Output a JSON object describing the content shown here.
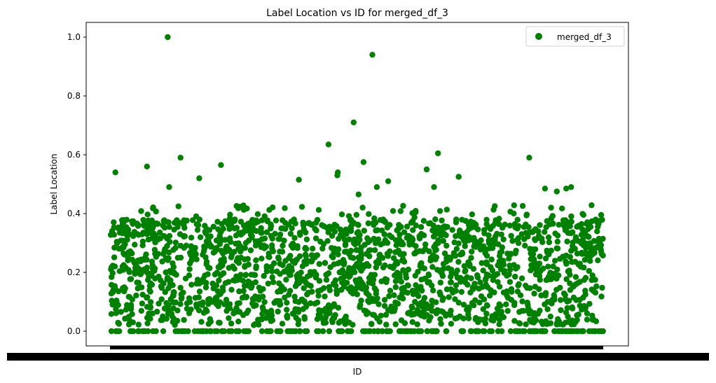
{
  "chart_data": {
    "type": "scatter",
    "title": "Label Location vs ID for merged_df_3",
    "xlabel": "ID",
    "ylabel": "Label Location",
    "ylim": [
      -0.05,
      1.05
    ],
    "yticks": [
      "0.0",
      "0.2",
      "0.4",
      "0.6",
      "0.8",
      "1.0"
    ],
    "x_tick_labels": "overlapping, illegible",
    "grid": false,
    "legend_position": "top-right",
    "series": [
      {
        "name": "merged_df_3",
        "color": "#008000",
        "marker": "circle",
        "point_count_estimate": 2100,
        "value_range": [
          0.0,
          0.41
        ],
        "notable_points": [
          {
            "x_fraction": 0.117,
            "y": 1.0
          },
          {
            "x_fraction": 0.532,
            "y": 0.94
          },
          {
            "x_fraction": 0.494,
            "y": 0.71
          },
          {
            "x_fraction": 0.443,
            "y": 0.635
          },
          {
            "x_fraction": 0.665,
            "y": 0.605
          },
          {
            "x_fraction": 0.143,
            "y": 0.59
          },
          {
            "x_fraction": 0.85,
            "y": 0.59
          },
          {
            "x_fraction": 0.514,
            "y": 0.575
          },
          {
            "x_fraction": 0.225,
            "y": 0.565
          },
          {
            "x_fraction": 0.075,
            "y": 0.56
          },
          {
            "x_fraction": 0.642,
            "y": 0.55
          },
          {
            "x_fraction": 0.011,
            "y": 0.54
          },
          {
            "x_fraction": 0.462,
            "y": 0.54
          },
          {
            "x_fraction": 0.461,
            "y": 0.53
          },
          {
            "x_fraction": 0.707,
            "y": 0.525
          },
          {
            "x_fraction": 0.181,
            "y": 0.52
          },
          {
            "x_fraction": 0.383,
            "y": 0.515
          },
          {
            "x_fraction": 0.564,
            "y": 0.51
          },
          {
            "x_fraction": 0.541,
            "y": 0.49
          },
          {
            "x_fraction": 0.657,
            "y": 0.49
          },
          {
            "x_fraction": 0.935,
            "y": 0.49
          },
          {
            "x_fraction": 0.12,
            "y": 0.49
          },
          {
            "x_fraction": 0.925,
            "y": 0.485
          },
          {
            "x_fraction": 0.882,
            "y": 0.485
          },
          {
            "x_fraction": 0.906,
            "y": 0.475
          },
          {
            "x_fraction": 0.504,
            "y": 0.465
          }
        ]
      }
    ]
  }
}
